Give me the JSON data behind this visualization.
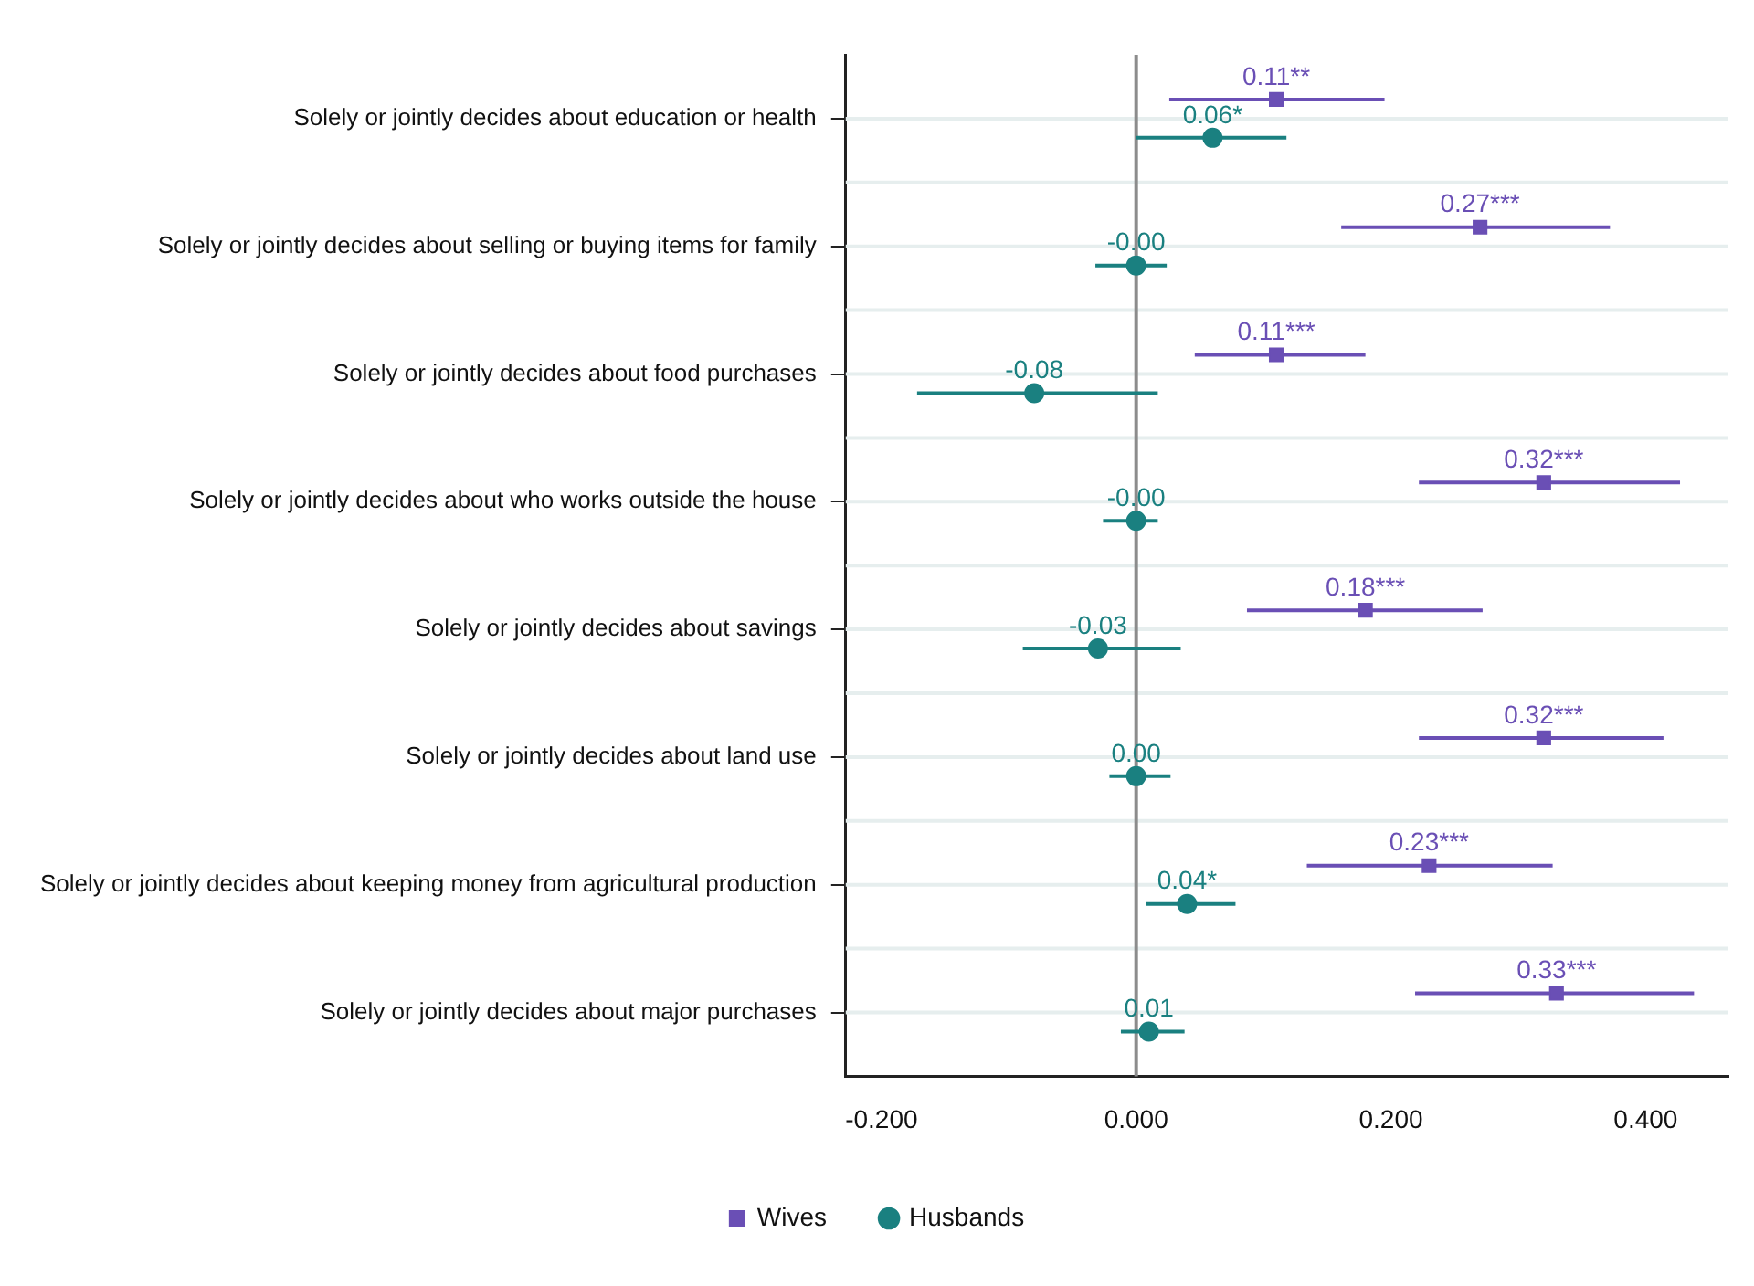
{
  "chart_data": {
    "type": "scatter",
    "categories": [
      "Solely or jointly decides about education or health",
      "Solely or jointly decides about selling or buying items for family",
      "Solely or jointly decides about food purchases",
      "Solely or jointly decides about who works outside the house",
      "Solely or jointly decides about savings",
      "Solely or jointly decides about land use",
      "Solely or jointly decides about keeping money from agricultural production",
      "Solely or jointly decides about major purchases"
    ],
    "series": [
      {
        "name": "Wives",
        "color": "#6a4fb5",
        "marker": "square",
        "values": [
          0.11,
          0.27,
          0.11,
          0.32,
          0.18,
          0.32,
          0.23,
          0.33
        ],
        "errors": [
          [
            0.026,
            0.195
          ],
          [
            0.161,
            0.372
          ],
          [
            0.046,
            0.18
          ],
          [
            0.222,
            0.427
          ],
          [
            0.087,
            0.272
          ],
          [
            0.222,
            0.414
          ],
          [
            0.134,
            0.327
          ],
          [
            0.219,
            0.438
          ]
        ],
        "value_labels": [
          "0.11**",
          "0.27***",
          "0.11***",
          "0.32***",
          "0.18***",
          "0.32***",
          "0.23***",
          "0.33***"
        ]
      },
      {
        "name": "Husbands",
        "color": "#1a8080",
        "marker": "circle",
        "values": [
          0.06,
          0,
          -0.08,
          0,
          -0.03,
          0,
          0.04,
          0.01
        ],
        "errors": [
          [
            0,
            0.118
          ],
          [
            -0.032,
            0.024
          ],
          [
            -0.172,
            0.017
          ],
          [
            -0.026,
            0.017
          ],
          [
            -0.089,
            0.035
          ],
          [
            -0.021,
            0.027
          ],
          [
            0.008,
            0.078
          ],
          [
            -0.012,
            0.038
          ]
        ],
        "value_labels": [
          "0.06*",
          "-0.00",
          "-0.08",
          "-0.00",
          "-0.03",
          "0.00",
          "0.04*",
          "0.01"
        ]
      }
    ],
    "xlim": [
      -0.228,
      0.465
    ],
    "xticks": [
      {
        "value": -0.2,
        "label": "-0.200"
      },
      {
        "value": 0,
        "label": "0.000"
      },
      {
        "value": 0.2,
        "label": "0.200"
      },
      {
        "value": 0.4,
        "label": "0.400"
      }
    ],
    "ref_lines": [
      {
        "axis": "x",
        "value": 0,
        "color": "#8c8c8c"
      }
    ],
    "grid": "y",
    "orientation": "horizontal",
    "legend": "bottom"
  }
}
